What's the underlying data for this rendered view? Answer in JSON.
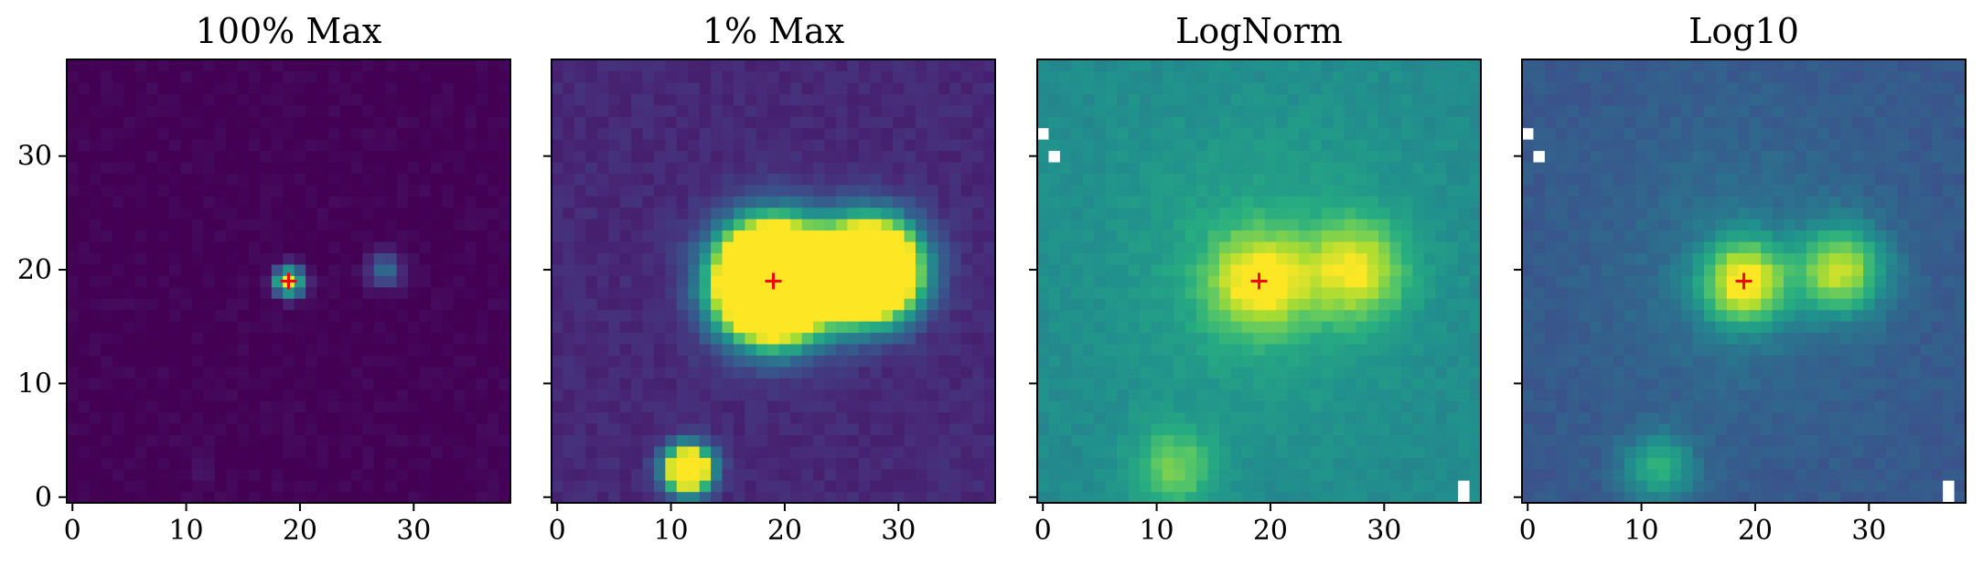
{
  "chart_data": [
    {
      "type": "heatmap",
      "title": "100% Max",
      "grid_size": [
        39,
        39
      ],
      "xlim": [
        -0.5,
        38.5
      ],
      "ylim": [
        -0.5,
        38.5
      ],
      "xticks": [
        0,
        10,
        20,
        30
      ],
      "yticks": [
        0,
        10,
        20,
        30
      ],
      "show_ytick_labels": true,
      "colormap": "viridis",
      "background": 0.0,
      "sources": [
        {
          "x": 19,
          "y": 19,
          "amp": 1.0,
          "sigma": 0.9
        },
        {
          "x": 27.5,
          "y": 20,
          "amp": 0.35,
          "sigma": 1.1
        },
        {
          "x": 11.5,
          "y": 2.5,
          "amp": 0.04,
          "sigma": 1.2
        }
      ],
      "masked_pixels": [],
      "marker": {
        "x": 19,
        "y": 19,
        "symbol": "+",
        "color": "#ff0000"
      }
    },
    {
      "type": "heatmap",
      "title": "1% Max",
      "grid_size": [
        39,
        39
      ],
      "xlim": [
        -0.5,
        38.5
      ],
      "ylim": [
        -0.5,
        38.5
      ],
      "xticks": [
        0,
        10,
        20,
        30
      ],
      "yticks": [
        0,
        10,
        20,
        30
      ],
      "show_ytick_labels": false,
      "colormap": "viridis",
      "background": 0.12,
      "sources": [
        {
          "x": 19,
          "y": 19,
          "amp": 3.0,
          "sigma": 3.2
        },
        {
          "x": 27.5,
          "y": 20,
          "amp": 2.4,
          "sigma": 2.8
        },
        {
          "x": 11.5,
          "y": 2.5,
          "amp": 1.6,
          "sigma": 1.4
        }
      ],
      "masked_pixels": [],
      "marker": {
        "x": 19,
        "y": 19,
        "symbol": "+",
        "color": "#ff0000"
      }
    },
    {
      "type": "heatmap",
      "title": "LogNorm",
      "grid_size": [
        39,
        39
      ],
      "xlim": [
        -0.5,
        38.5
      ],
      "ylim": [
        -0.5,
        38.5
      ],
      "xticks": [
        0,
        10,
        20,
        30
      ],
      "yticks": [
        0,
        10,
        20,
        30
      ],
      "show_ytick_labels": false,
      "colormap": "viridis",
      "background": 0.48,
      "sources": [
        {
          "x": 19,
          "y": 19,
          "amp": 0.5,
          "sigma": 3.0
        },
        {
          "x": 27.5,
          "y": 20,
          "amp": 0.45,
          "sigma": 3.0
        },
        {
          "x": 11.5,
          "y": 2.5,
          "amp": 0.3,
          "sigma": 2.5
        },
        {
          "x": 19,
          "y": 20,
          "amp": 0.12,
          "sigma": 9.0
        }
      ],
      "masked_pixels": [
        [
          0,
          32
        ],
        [
          1,
          30
        ],
        [
          37,
          1
        ],
        [
          37,
          0
        ]
      ],
      "marker": {
        "x": 19,
        "y": 19,
        "symbol": "+",
        "color": "#ff0000"
      }
    },
    {
      "type": "heatmap",
      "title": "Log10",
      "grid_size": [
        39,
        39
      ],
      "xlim": [
        -0.5,
        38.5
      ],
      "ylim": [
        -0.5,
        38.5
      ],
      "xticks": [
        0,
        10,
        20,
        30
      ],
      "yticks": [
        0,
        10,
        20,
        30
      ],
      "show_ytick_labels": false,
      "colormap": "viridis",
      "background": 0.28,
      "sources": [
        {
          "x": 19,
          "y": 19,
          "amp": 0.7,
          "sigma": 2.6
        },
        {
          "x": 27.5,
          "y": 20,
          "amp": 0.6,
          "sigma": 2.6
        },
        {
          "x": 11.5,
          "y": 2.5,
          "amp": 0.35,
          "sigma": 2.2
        },
        {
          "x": 19,
          "y": 20,
          "amp": 0.1,
          "sigma": 9.0
        }
      ],
      "masked_pixels": [
        [
          0,
          32
        ],
        [
          1,
          30
        ],
        [
          37,
          1
        ],
        [
          37,
          0
        ]
      ],
      "marker": {
        "x": 19,
        "y": 19,
        "symbol": "+",
        "color": "#ff0000"
      }
    }
  ]
}
